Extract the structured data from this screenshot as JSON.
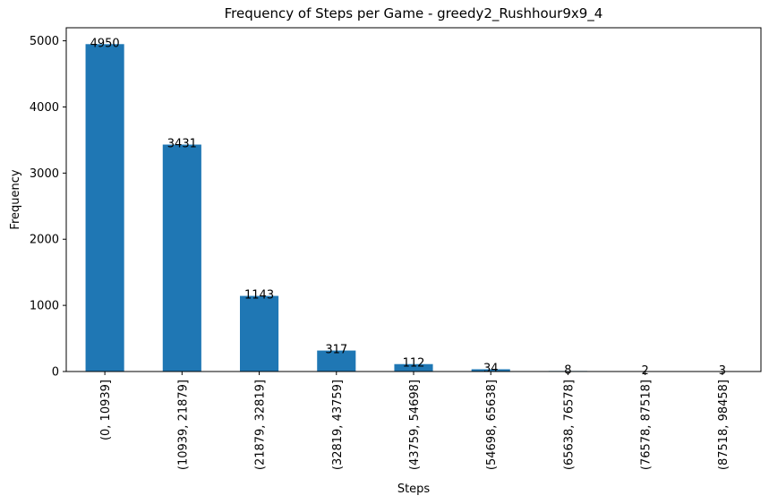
{
  "chart_data": {
    "type": "bar",
    "title": "Frequency of Steps per Game - greedy2_Rushhour9x9_4",
    "xlabel": "Steps",
    "ylabel": "Frequency",
    "categories": [
      "(0, 10939]",
      "(10939, 21879]",
      "(21879, 32819]",
      "(32819, 43759]",
      "(43759, 54698]",
      "(54698, 65638]",
      "(65638, 76578]",
      "(76578, 87518]",
      "(87518, 98458]"
    ],
    "values": [
      4950,
      3431,
      1143,
      317,
      112,
      34,
      8,
      2,
      3
    ],
    "data_labels": [
      "4950",
      "3431",
      "1143",
      "317",
      "112",
      "34",
      "8",
      "2",
      "3"
    ],
    "ylim": [
      0,
      5197.5
    ],
    "yticks": [
      0,
      1000,
      2000,
      3000,
      4000,
      5000
    ],
    "ytick_labels": [
      "0",
      "1000",
      "2000",
      "3000",
      "4000",
      "5000"
    ],
    "bar_color": "#1f77b4",
    "grid": false,
    "legend": false
  }
}
